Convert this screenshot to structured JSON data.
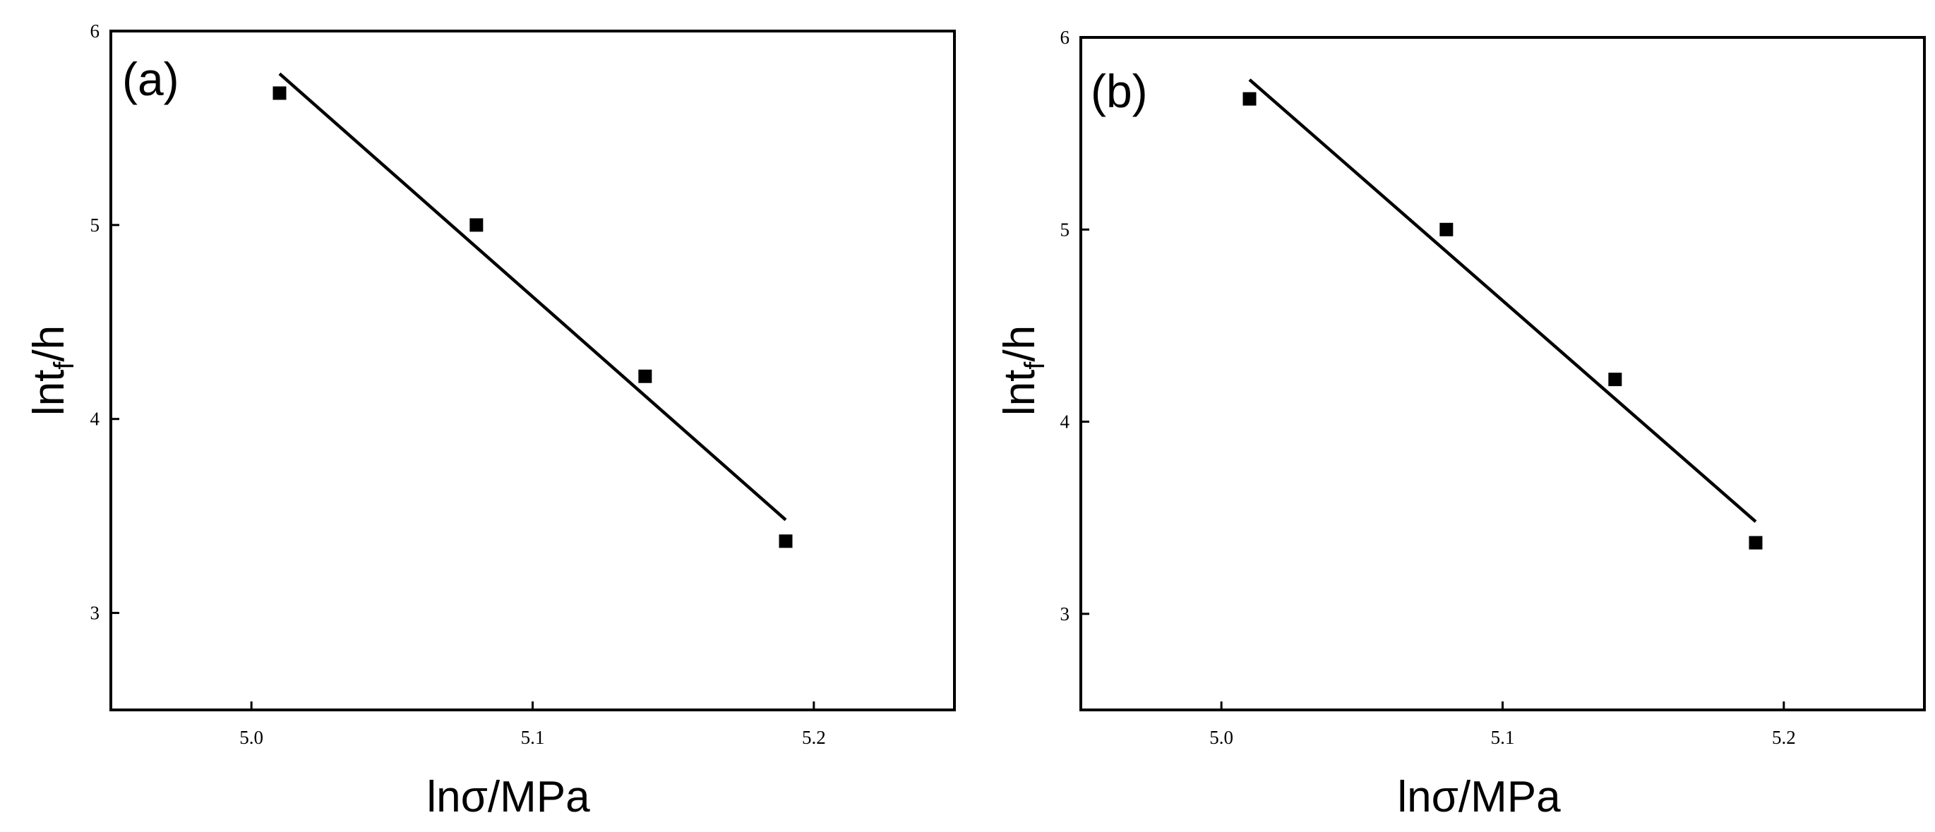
{
  "chart_data": [
    {
      "type": "scatter",
      "panel_label": "(a)",
      "xlabel": "lnσ/MPa",
      "ylabel": "lnt",
      "ylabel_sub": "f",
      "ylabel_unit": "/h",
      "xlim": [
        4.95,
        5.25
      ],
      "ylim": [
        2.5,
        6.0
      ],
      "xticks": [
        5.0,
        5.1,
        5.2
      ],
      "xtick_labels": [
        "5.0",
        "5.1",
        "5.2"
      ],
      "yticks": [
        3,
        4,
        5,
        6
      ],
      "ytick_labels": [
        "3",
        "4",
        "5",
        "6"
      ],
      "points": [
        {
          "x": 5.01,
          "y": 5.68
        },
        {
          "x": 5.08,
          "y": 5.0
        },
        {
          "x": 5.14,
          "y": 4.22
        },
        {
          "x": 5.19,
          "y": 3.37
        }
      ],
      "fit_line": {
        "x": [
          5.01,
          5.19
        ],
        "y": [
          5.78,
          3.48
        ]
      },
      "grid": false,
      "legend": "none"
    },
    {
      "type": "scatter",
      "panel_label": "(b)",
      "xlabel": "lnσ/MPa",
      "ylabel": "lnt",
      "ylabel_sub": "f",
      "ylabel_unit": "/h",
      "xlim": [
        4.95,
        5.25
      ],
      "ylim": [
        2.5,
        6.0
      ],
      "xticks": [
        5.0,
        5.1,
        5.2
      ],
      "xtick_labels": [
        "5.0",
        "5.1",
        "5.2"
      ],
      "yticks": [
        3,
        4,
        5,
        6
      ],
      "ytick_labels": [
        "3",
        "4",
        "5",
        "6"
      ],
      "points": [
        {
          "x": 5.01,
          "y": 5.68
        },
        {
          "x": 5.08,
          "y": 5.0
        },
        {
          "x": 5.14,
          "y": 4.22
        },
        {
          "x": 5.19,
          "y": 3.37
        }
      ],
      "fit_line": {
        "x": [
          5.01,
          5.19
        ],
        "y": [
          5.78,
          3.48
        ]
      },
      "grid": false,
      "legend": "none"
    }
  ]
}
